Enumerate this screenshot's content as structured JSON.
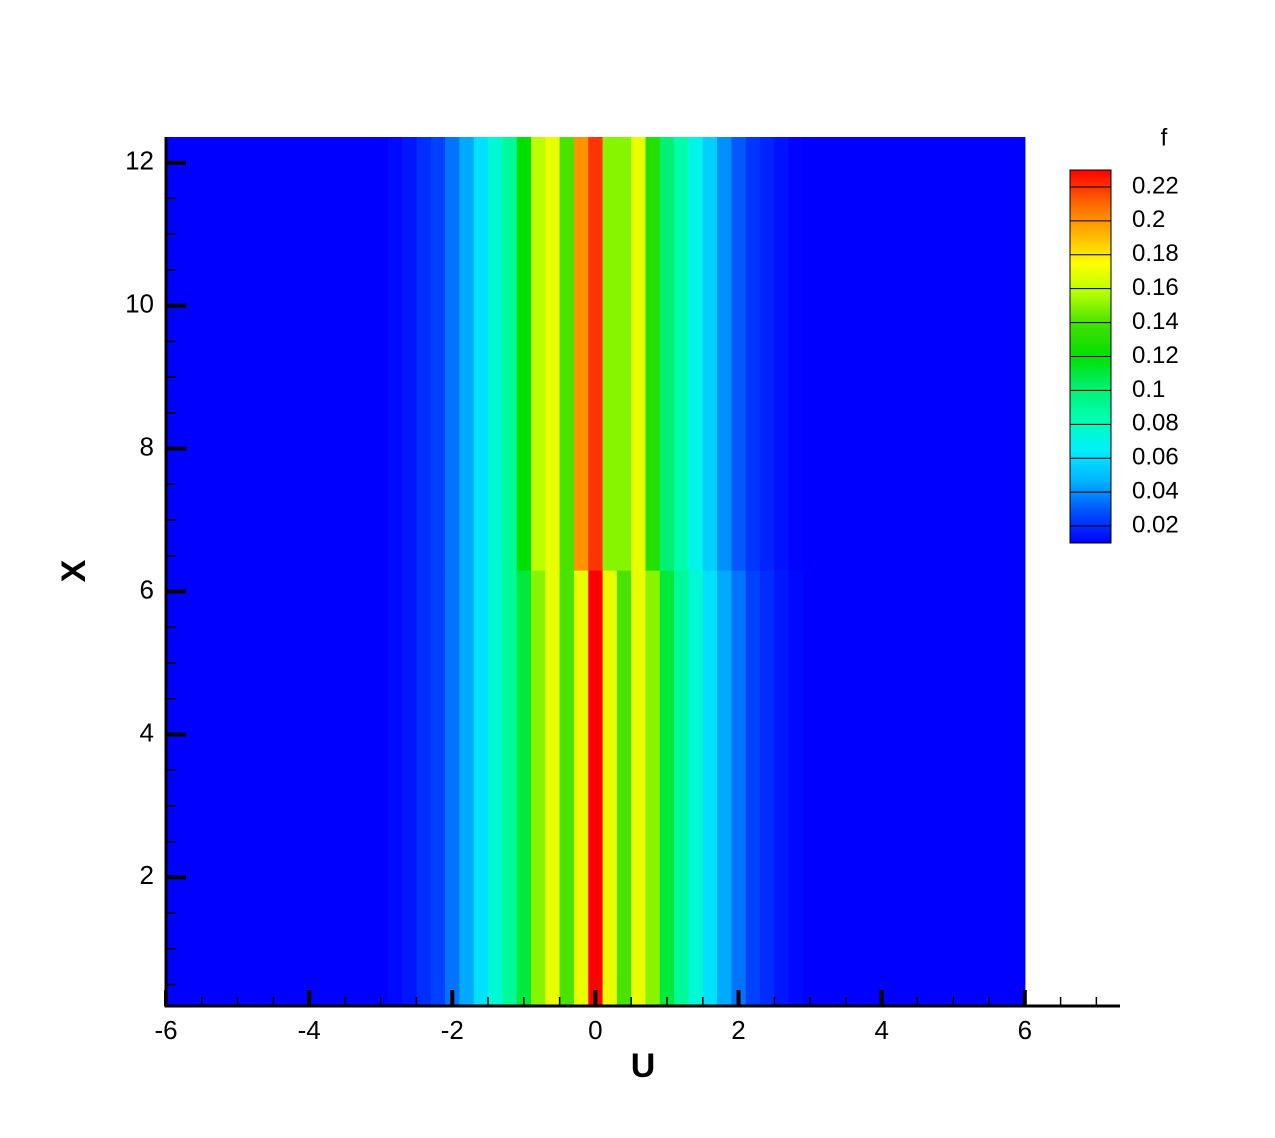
{
  "chart_data": {
    "type": "heatmap",
    "xlabel": "U",
    "ylabel": "X",
    "colorbar_title": "f",
    "xlim": [
      -6,
      7.33
    ],
    "ylim": [
      0.2,
      12.36
    ],
    "xticks": [
      -6,
      -4,
      -2,
      0,
      2,
      4,
      6
    ],
    "yticks": [
      2,
      4,
      6,
      8,
      10,
      12
    ],
    "xminorticks": [
      -5.5,
      -5,
      -4.5,
      -3.5,
      -3,
      -2.5,
      -1.5,
      -1,
      -0.5,
      0.5,
      1,
      1.5,
      2.5,
      3,
      3.5,
      4.5,
      5,
      5.5,
      6.5,
      7
    ],
    "yminorticks": [
      0.5,
      1,
      1.5,
      2.5,
      3,
      3.5,
      4.5,
      5,
      5.5,
      6.5,
      7,
      7.5,
      8.5,
      9,
      9.5,
      10.5,
      11,
      11.5
    ],
    "x_edges": [
      -6,
      -3.1,
      -2.9,
      -2.7,
      -2.5,
      -2.3,
      -2.1,
      -1.9,
      -1.7,
      -1.5,
      -1.3,
      -1.1,
      -0.9,
      -0.7,
      -0.5,
      -0.3,
      -0.1,
      0.1,
      0.3,
      0.5,
      0.7,
      0.9,
      1.1,
      1.3,
      1.5,
      1.7,
      1.9,
      2.1,
      2.3,
      2.5,
      2.7,
      2.9,
      3.1,
      6
    ],
    "y_edges": [
      0.2,
      6.3,
      12.36
    ],
    "values": [
      [
        0.01,
        0.01,
        0.012,
        0.015,
        0.02,
        0.025,
        0.035,
        0.045,
        0.06,
        0.075,
        0.09,
        0.11,
        0.15,
        0.17,
        0.14,
        0.17,
        0.23,
        0.17,
        0.14,
        0.17,
        0.15,
        0.11,
        0.09,
        0.075,
        0.06,
        0.045,
        0.035,
        0.025,
        0.02,
        0.015,
        0.012,
        0.01,
        0.01
      ],
      [
        0.01,
        0.01,
        0.012,
        0.015,
        0.02,
        0.025,
        0.035,
        0.045,
        0.06,
        0.075,
        0.09,
        0.12,
        0.16,
        0.17,
        0.14,
        0.2,
        0.22,
        0.15,
        0.15,
        0.17,
        0.13,
        0.1,
        0.085,
        0.07,
        0.055,
        0.04,
        0.03,
        0.022,
        0.018,
        0.014,
        0.011,
        0.01,
        0.01
      ]
    ],
    "clim": [
      0.01,
      0.23
    ],
    "cticks": [
      0.02,
      0.04,
      0.06,
      0.08,
      0.1,
      0.12,
      0.14,
      0.16,
      0.18,
      0.2,
      0.22
    ],
    "colormap": [
      "#0000ff",
      "#0050ff",
      "#00b4ff",
      "#00f0ff",
      "#00ffb0",
      "#00f070",
      "#00e000",
      "#40e000",
      "#b0ff00",
      "#ffff00",
      "#ffb000",
      "#ff6000",
      "#ff0000"
    ]
  }
}
